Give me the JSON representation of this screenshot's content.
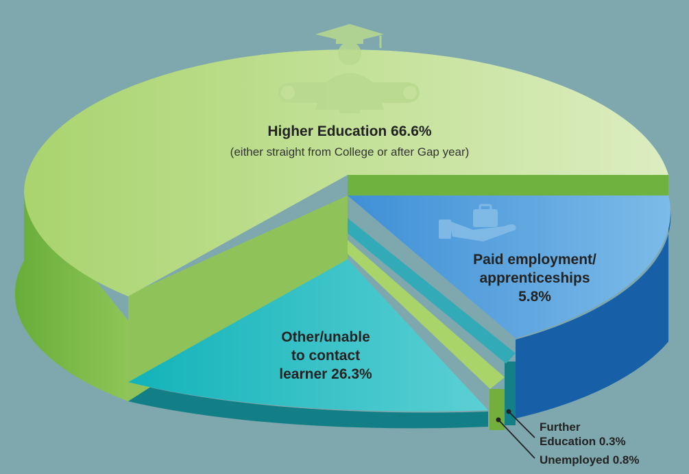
{
  "chart_data": {
    "type": "pie",
    "style": "3d",
    "slices": [
      {
        "key": "higher_education",
        "label": "Higher Education",
        "value": 66.6,
        "value_label": "66.6%",
        "note": "(either straight from College or after Gap year)",
        "color": "#c4e09a",
        "side_color": "#7bb84a",
        "icon": "graduate-icon"
      },
      {
        "key": "paid_employment",
        "label": "Paid employment/ apprenticeships",
        "value": 5.8,
        "value_label": "5.8%",
        "color": "#5aa4dd",
        "side_color": "#1b5fa3",
        "icon": "briefcase-hand-icon"
      },
      {
        "key": "further_education",
        "label": "Further Education",
        "value": 0.3,
        "value_label": "0.3%",
        "color": "#3ab4c4",
        "side_color": "#137a84"
      },
      {
        "key": "unemployed",
        "label": "Unemployed",
        "value": 0.8,
        "value_label": "0.8%",
        "color": "#a8d468",
        "side_color": "#6aa83a"
      },
      {
        "key": "other",
        "label": "Other/unable to contact learner",
        "value": 26.3,
        "value_label": "26.3%",
        "color": "#2fc0c6",
        "side_color": "#14848a"
      }
    ]
  },
  "labels": {
    "higher_education": "Higher Education 66.6%",
    "higher_education_note": "(either straight from College or after Gap year)",
    "paid_line1": "Paid employment/",
    "paid_line2": "apprenticeships",
    "paid_line3": "5.8%",
    "other_line1": "Other/unable",
    "other_line2": "to contact",
    "other_line3": "learner 26.3%",
    "further_line1": "Further",
    "further_line2": "Education 0.3%",
    "unemployed": "Unemployed 0.8%"
  },
  "colors": {
    "background": "#7fa8ae"
  }
}
